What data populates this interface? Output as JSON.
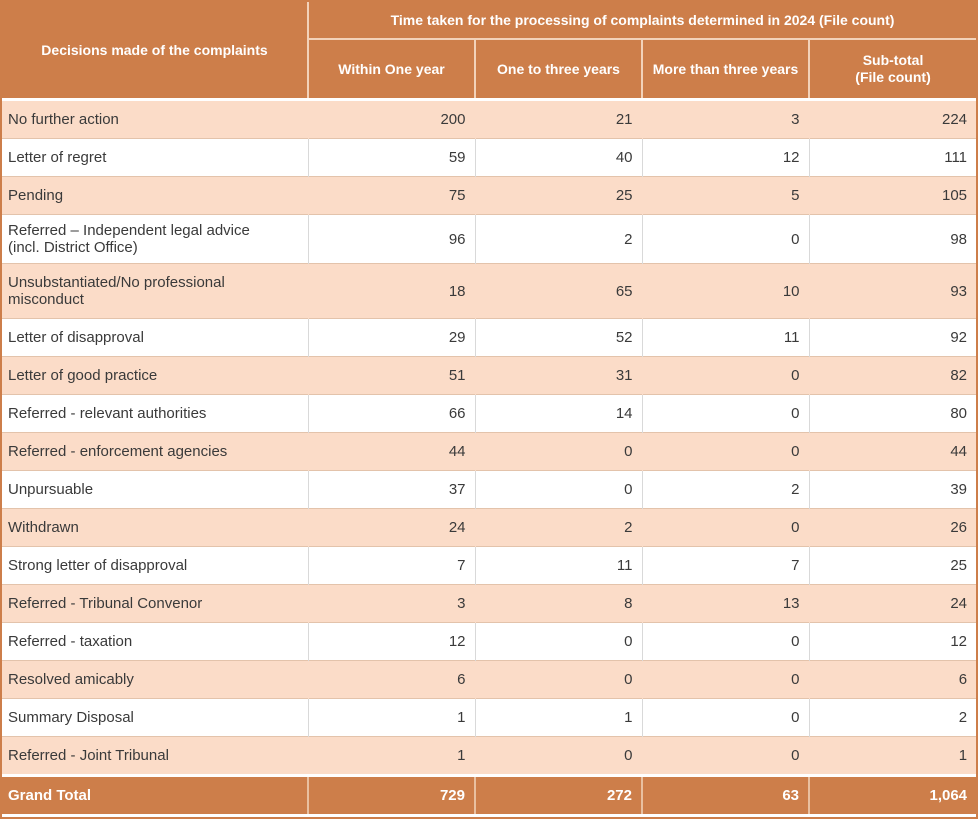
{
  "colors": {
    "header_bg": "#cd7e4a",
    "alt_row_bg": "#fbdcc8",
    "header_text": "#ffffff",
    "body_text": "#3a3a3a",
    "row_divider": "#e3c3ab",
    "column_divider": "#d9d9d9"
  },
  "table": {
    "corner_header": "Decisions made of the complaints",
    "group_header": "Time taken for the processing of complaints determined in 2024 (File count)",
    "columns": [
      "Within One year",
      "One to three years",
      "More than three years",
      "Sub-total\n(File count)"
    ],
    "rows": [
      {
        "label": "No further action",
        "values": [
          "200",
          "21",
          "3",
          "224"
        ]
      },
      {
        "label": "Letter of regret",
        "values": [
          "59",
          "40",
          "12",
          "111"
        ]
      },
      {
        "label": "Pending",
        "values": [
          "75",
          "25",
          "5",
          "105"
        ]
      },
      {
        "label": "Referred – Independent legal advice\n(incl. District Office)",
        "values": [
          "96",
          "2",
          "0",
          "98"
        ]
      },
      {
        "label": "Unsubstantiated/No professional misconduct",
        "values": [
          "18",
          "65",
          "10",
          "93"
        ]
      },
      {
        "label": "Letter of disapproval",
        "values": [
          "29",
          "52",
          "11",
          "92"
        ]
      },
      {
        "label": "Letter of good practice",
        "values": [
          "51",
          "31",
          "0",
          "82"
        ]
      },
      {
        "label": "Referred - relevant authorities",
        "values": [
          "66",
          "14",
          "0",
          "80"
        ]
      },
      {
        "label": "Referred - enforcement agencies",
        "values": [
          "44",
          "0",
          "0",
          "44"
        ]
      },
      {
        "label": "Unpursuable",
        "values": [
          "37",
          "0",
          "2",
          "39"
        ]
      },
      {
        "label": "Withdrawn",
        "values": [
          "24",
          "2",
          "0",
          "26"
        ]
      },
      {
        "label": "Strong letter of disapproval",
        "values": [
          "7",
          "11",
          "7",
          "25"
        ]
      },
      {
        "label": "Referred - Tribunal Convenor",
        "values": [
          "3",
          "8",
          "13",
          "24"
        ]
      },
      {
        "label": "Referred - taxation",
        "values": [
          "12",
          "0",
          "0",
          "12"
        ]
      },
      {
        "label": "Resolved amicably",
        "values": [
          "6",
          "0",
          "0",
          "6"
        ]
      },
      {
        "label": "Summary Disposal",
        "values": [
          "1",
          "1",
          "0",
          "2"
        ]
      },
      {
        "label": "Referred - Joint Tribunal",
        "values": [
          "1",
          "0",
          "0",
          "1"
        ]
      }
    ],
    "grand_total": {
      "label": "Grand Total",
      "values": [
        "729",
        "272",
        "63",
        "1,064"
      ]
    }
  },
  "chart_data": {
    "type": "table",
    "title": "Time taken for the processing of complaints determined in 2024 (File count)",
    "row_header_label": "Decisions made of the complaints",
    "columns": [
      "Within One year",
      "One to three years",
      "More than three years",
      "Sub-total (File count)"
    ],
    "rows": [
      {
        "label": "No further action",
        "values": [
          200,
          21,
          3,
          224
        ]
      },
      {
        "label": "Letter of regret",
        "values": [
          59,
          40,
          12,
          111
        ]
      },
      {
        "label": "Pending",
        "values": [
          75,
          25,
          5,
          105
        ]
      },
      {
        "label": "Referred – Independent legal advice (incl. District Office)",
        "values": [
          96,
          2,
          0,
          98
        ]
      },
      {
        "label": "Unsubstantiated/No professional misconduct",
        "values": [
          18,
          65,
          10,
          93
        ]
      },
      {
        "label": "Letter of disapproval",
        "values": [
          29,
          52,
          11,
          92
        ]
      },
      {
        "label": "Letter of good practice",
        "values": [
          51,
          31,
          0,
          82
        ]
      },
      {
        "label": "Referred - relevant authorities",
        "values": [
          66,
          14,
          0,
          80
        ]
      },
      {
        "label": "Referred - enforcement agencies",
        "values": [
          44,
          0,
          0,
          44
        ]
      },
      {
        "label": "Unpursuable",
        "values": [
          37,
          0,
          2,
          39
        ]
      },
      {
        "label": "Withdrawn",
        "values": [
          24,
          2,
          0,
          26
        ]
      },
      {
        "label": "Strong letter of disapproval",
        "values": [
          7,
          11,
          7,
          25
        ]
      },
      {
        "label": "Referred - Tribunal Convenor",
        "values": [
          3,
          8,
          13,
          24
        ]
      },
      {
        "label": "Referred - taxation",
        "values": [
          12,
          0,
          0,
          12
        ]
      },
      {
        "label": "Resolved amicably",
        "values": [
          6,
          0,
          0,
          6
        ]
      },
      {
        "label": "Summary Disposal",
        "values": [
          1,
          1,
          0,
          2
        ]
      },
      {
        "label": "Referred - Joint Tribunal",
        "values": [
          1,
          0,
          0,
          1
        ]
      }
    ],
    "grand_total": {
      "label": "Grand Total",
      "values": [
        729,
        272,
        63,
        1064
      ]
    }
  }
}
